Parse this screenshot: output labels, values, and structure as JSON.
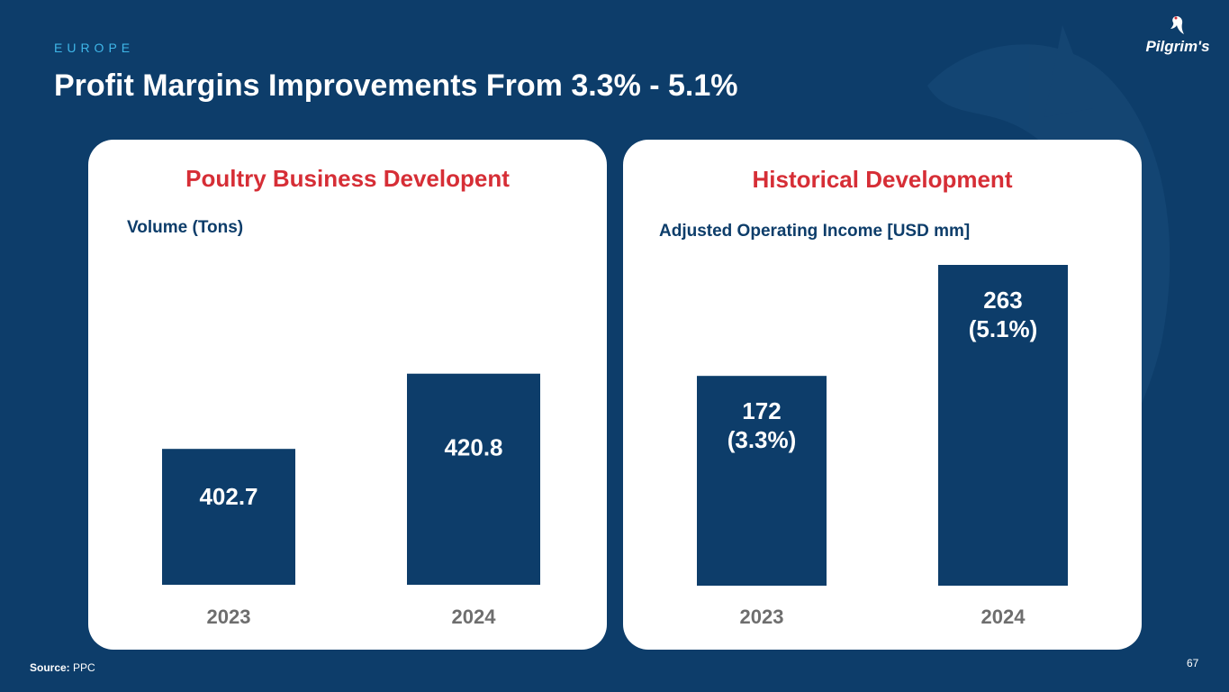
{
  "header": {
    "section": "EUROPE",
    "title": "Profit Margins Improvements From 3.3% - 5.1%",
    "logo_text": "Pilgrim's"
  },
  "colors": {
    "background": "#0d3d6a",
    "bar": "#0d3d6a",
    "panel_title": "#d62e36",
    "section_label": "#3fb6e8",
    "tick": "#6e6e6e"
  },
  "chart_data": [
    {
      "type": "bar",
      "title": "Poultry Business Developent",
      "ylabel": "Volume (Tons)",
      "categories": [
        "2023",
        "2024"
      ],
      "values": [
        402.7,
        420.8
      ],
      "data_labels": [
        [
          "402.7"
        ],
        [
          "420.8"
        ]
      ],
      "ylim": [
        370,
        437
      ]
    },
    {
      "type": "bar",
      "title": "Historical Development",
      "ylabel": "Adjusted Operating Income [USD mm]",
      "categories": [
        "2023",
        "2024"
      ],
      "values": [
        172,
        263
      ],
      "data_labels": [
        [
          "172",
          "(3.3%)"
        ],
        [
          "263",
          "(5.1%)"
        ]
      ],
      "ylim": [
        0,
        263
      ]
    }
  ],
  "footer": {
    "source_label": "Source:",
    "source_value": "PPC",
    "page_number": "67"
  }
}
